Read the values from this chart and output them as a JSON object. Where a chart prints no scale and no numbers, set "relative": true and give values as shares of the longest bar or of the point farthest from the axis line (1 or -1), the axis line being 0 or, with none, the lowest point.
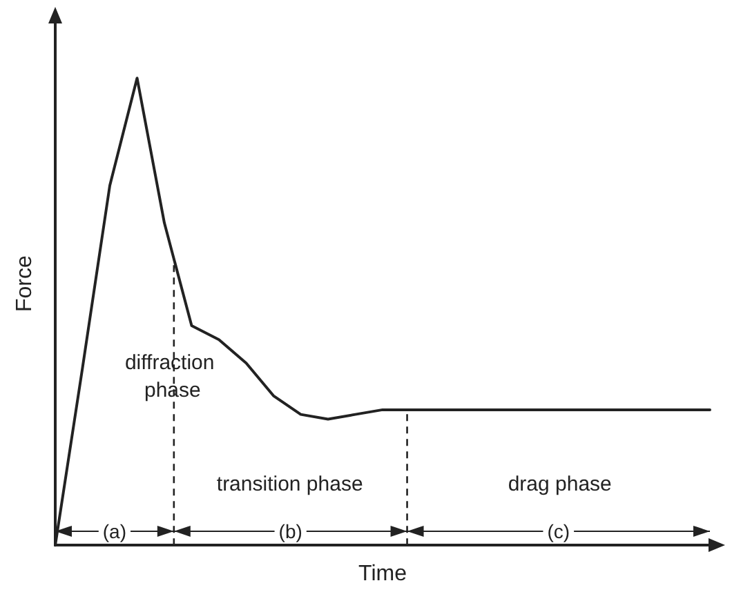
{
  "chart_data": {
    "type": "line",
    "relative": true,
    "xlabel": "Time",
    "ylabel": "Force",
    "categories": [
      null,
      null,
      null,
      null,
      null,
      null,
      null,
      null,
      null,
      null,
      null,
      null,
      null,
      null,
      null,
      null,
      null,
      null,
      null,
      null,
      null,
      null,
      null,
      null,
      null
    ],
    "values": [
      0,
      0.38,
      0.77,
      1,
      0.69,
      0.47,
      0.44,
      0.39,
      0.32,
      0.28,
      0.27,
      0.28,
      0.29,
      0.29,
      0.29,
      0.29,
      0.29,
      0.29,
      0.29,
      0.29,
      0.29,
      0.29,
      0.29,
      0.29,
      0.29
    ],
    "color": "#222222",
    "grid": false,
    "marker": "none",
    "line_style": "solid",
    "ref_lines": [
      {
        "axis": "x",
        "line_style": "dashed"
      },
      {
        "axis": "x",
        "line_style": "dashed"
      }
    ],
    "annotations": [
      "diffraction phase",
      "transition phase",
      "drag phase",
      "(a)",
      "(b)",
      "(c)"
    ]
  }
}
